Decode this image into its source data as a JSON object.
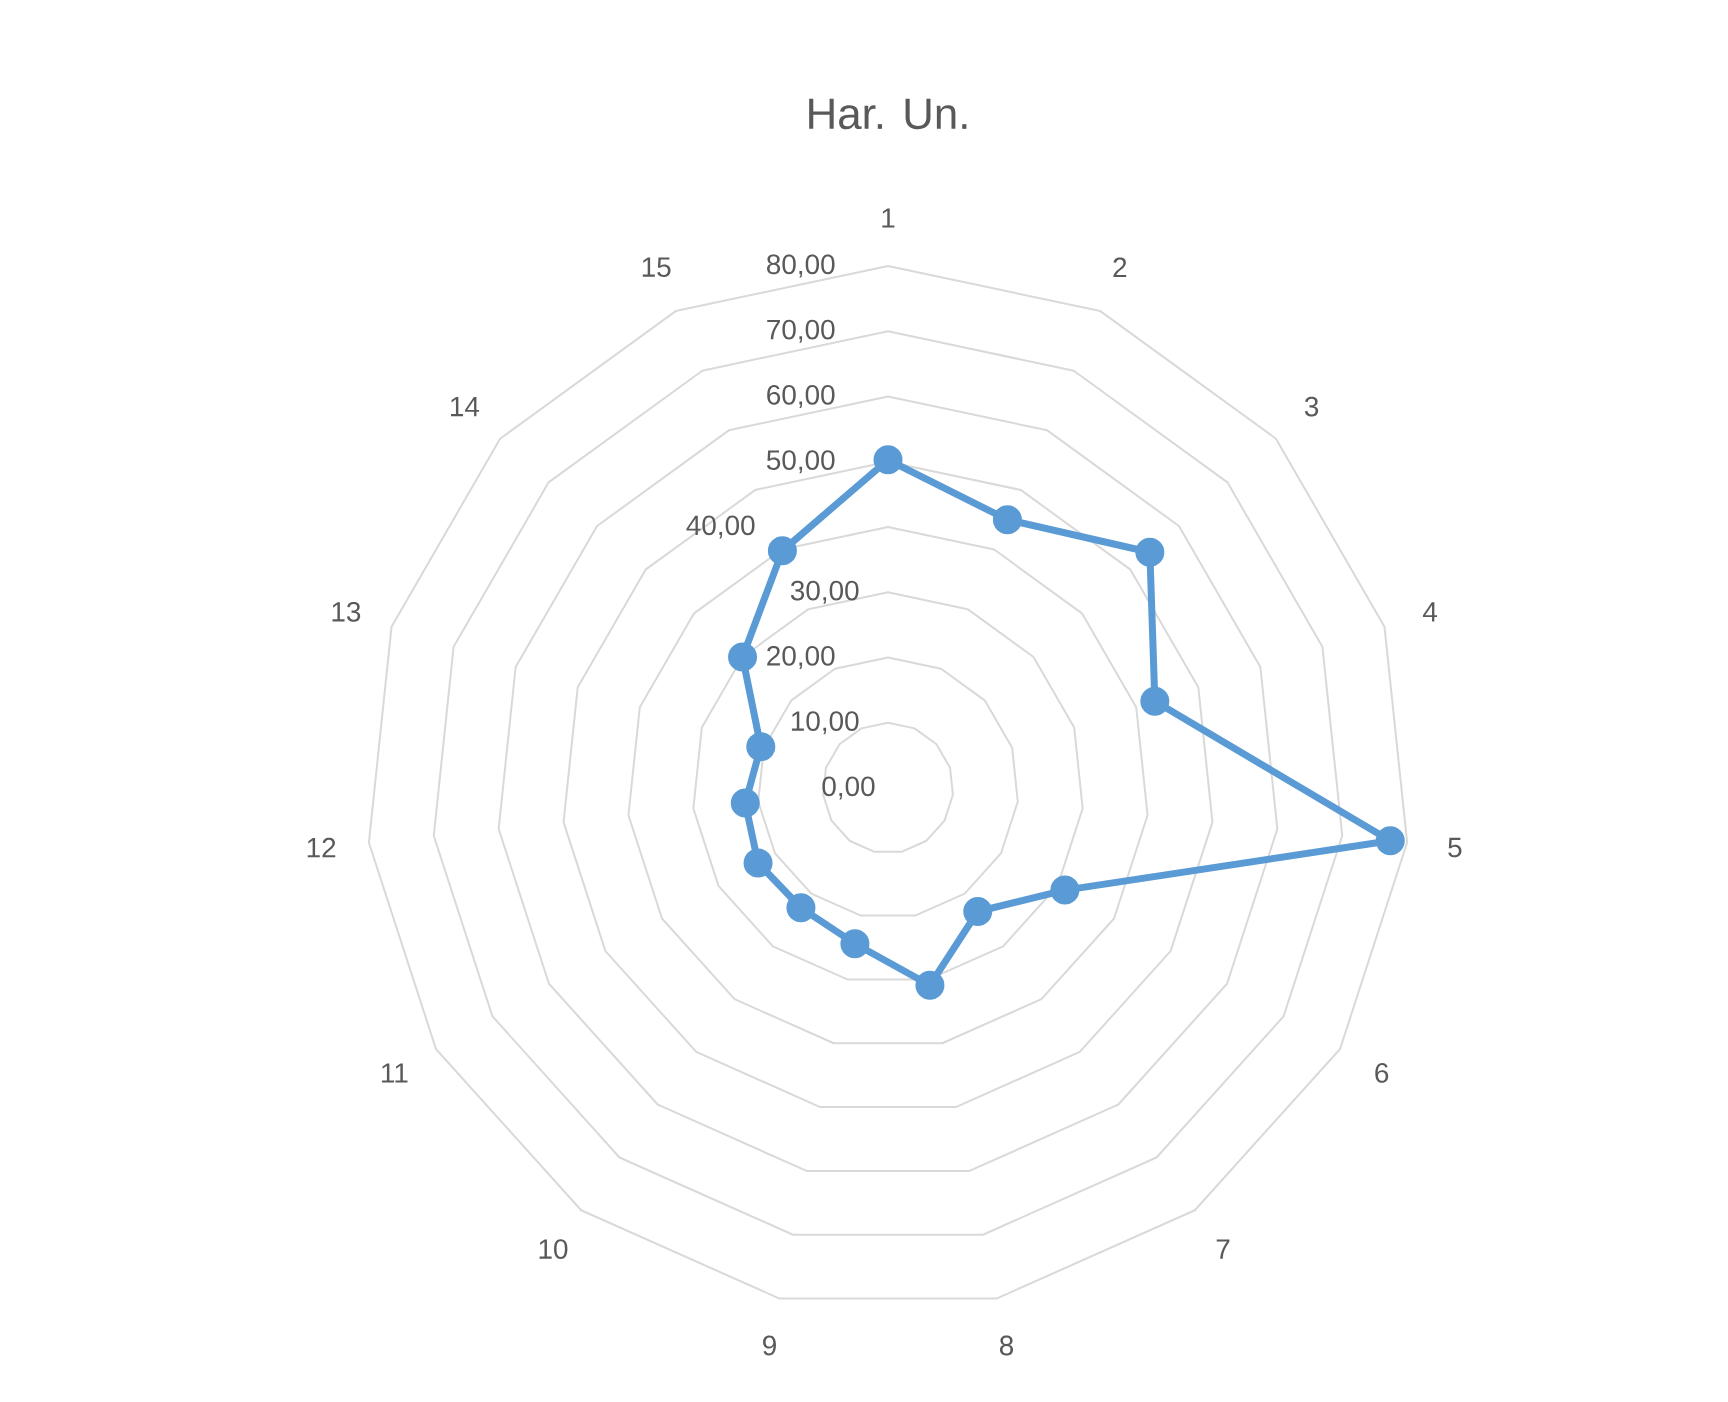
{
  "chart_data": {
    "type": "radar",
    "title": "Har. Un.",
    "categories": [
      "1",
      "2",
      "3",
      "4",
      "5",
      "6",
      "7",
      "8",
      "9",
      "10",
      "11",
      "12",
      "13",
      "14",
      "15"
    ],
    "series": [
      {
        "color": "#5b9bd5",
        "values": [
          50.3,
          45,
          54,
          43,
          77.4,
          31.3,
          23.4,
          30.9,
          24.4,
          22.7,
          23,
          22,
          20.5,
          30,
          39.8
        ]
      }
    ],
    "ylim": [
      0,
      80
    ],
    "yticks": [
      {
        "value": 0,
        "label": "0,00"
      },
      {
        "value": 10,
        "label": "10,00"
      },
      {
        "value": 20,
        "label": "20,00"
      },
      {
        "value": 30,
        "label": "30,00"
      },
      {
        "value": 40,
        "label": "40,00"
      },
      {
        "value": 50,
        "label": "50,00"
      },
      {
        "value": 60,
        "label": "60,00"
      },
      {
        "value": 70,
        "label": "70,00"
      },
      {
        "value": 80,
        "label": "80,00"
      }
    ],
    "grid": true,
    "marker": "circle",
    "line_style": "solid"
  }
}
